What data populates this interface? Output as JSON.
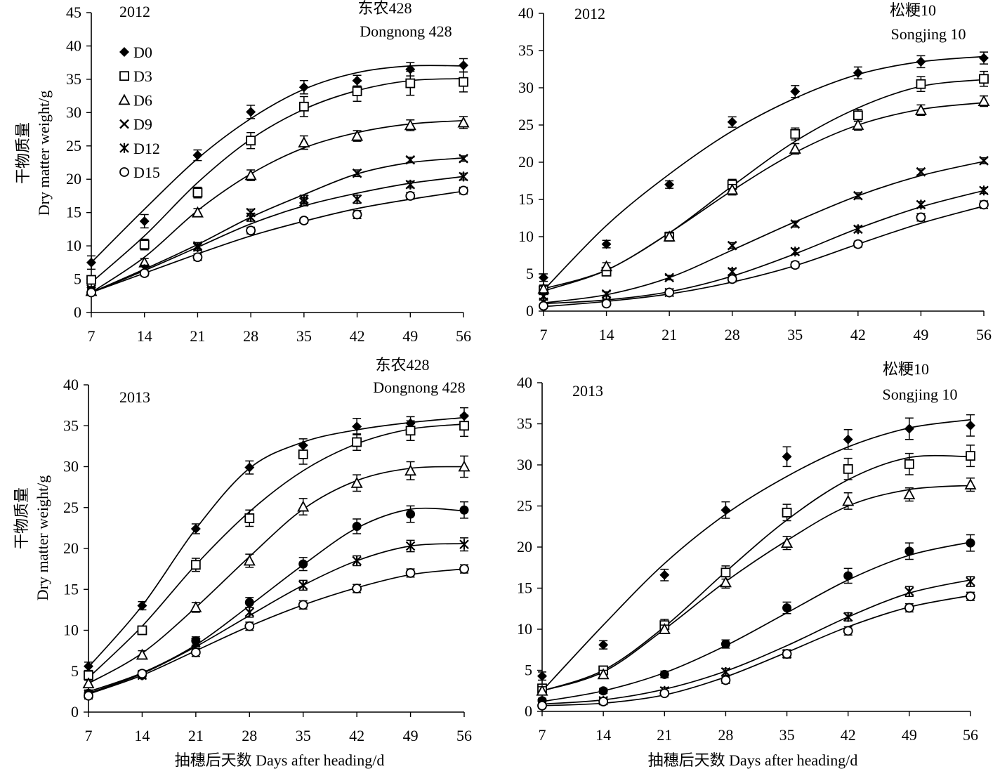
{
  "figure": {
    "ylabel_cn": "干物质量",
    "ylabel_en": "Dry matter weight/g",
    "xlabel": "抽穗后天数 Days after heading/d",
    "legend": [
      "D0",
      "D3",
      "D6",
      "D9",
      "D12",
      "D15"
    ],
    "colors": {
      "ink": "#000000",
      "background": "#ffffff"
    }
  },
  "chart_data": [
    {
      "type": "line",
      "year": "2012",
      "variety_cn": "东农428",
      "variety_en": "Dongnong 428",
      "x": [
        7,
        14,
        21,
        28,
        35,
        42,
        49,
        56
      ],
      "ylim": [
        0,
        45
      ],
      "yticks": [
        0,
        5,
        10,
        15,
        20,
        25,
        30,
        35,
        40,
        45
      ],
      "legend_position": "top-left",
      "series": [
        {
          "name": "D0",
          "marker": "diamond",
          "values": [
            7.5,
            13.7,
            23.6,
            30.1,
            33.8,
            34.8,
            36.5,
            37.1
          ],
          "err": [
            1.0,
            1.0,
            0.8,
            1.0,
            1.0,
            0.8,
            1.0,
            1.0
          ]
        },
        {
          "name": "D3",
          "marker": "square",
          "values": [
            4.9,
            10.2,
            18.0,
            25.8,
            30.9,
            33.2,
            34.4,
            34.6
          ],
          "err": [
            0.6,
            0.8,
            0.8,
            1.2,
            1.5,
            1.5,
            1.8,
            1.5
          ]
        },
        {
          "name": "D6",
          "marker": "triangle",
          "values": [
            3.2,
            7.5,
            15.0,
            20.6,
            25.5,
            26.5,
            28.1,
            28.5
          ],
          "err": [
            0.5,
            0.6,
            0.6,
            0.8,
            1.0,
            0.8,
            0.8,
            0.9
          ]
        },
        {
          "name": "D9",
          "marker": "x",
          "values": [
            3.5,
            6.6,
            10.0,
            15.0,
            16.6,
            20.9,
            22.9,
            23.1
          ],
          "err": [
            0.4,
            0.5,
            0.5,
            0.5,
            0.6,
            0.5,
            0.4,
            0.4
          ]
        },
        {
          "name": "D12",
          "marker": "asterisk",
          "values": [
            3.2,
            6.5,
            9.8,
            14.3,
            17.0,
            17.0,
            19.2,
            20.4
          ],
          "err": [
            0.4,
            0.5,
            0.5,
            0.6,
            0.6,
            0.6,
            0.5,
            0.5
          ]
        },
        {
          "name": "D15",
          "marker": "circle",
          "values": [
            3.0,
            5.9,
            8.3,
            12.3,
            13.8,
            14.7,
            17.5,
            18.3
          ],
          "err": [
            0.4,
            0.4,
            0.5,
            0.5,
            0.4,
            0.6,
            0.5,
            0.5
          ]
        }
      ],
      "fits": [
        [
          7.5,
          15.5,
          23.1,
          29.1,
          33.5,
          36.0,
          37.0,
          37.0
        ],
        [
          4.5,
          11.5,
          19.5,
          26.0,
          30.5,
          33.3,
          34.8,
          35.1
        ],
        [
          3.0,
          8.3,
          15.3,
          20.8,
          24.7,
          27.0,
          28.3,
          28.8
        ],
        [
          3.0,
          6.5,
          10.2,
          14.3,
          17.7,
          20.8,
          22.5,
          23.2
        ],
        [
          3.0,
          6.3,
          9.8,
          13.3,
          16.0,
          17.9,
          19.4,
          20.4
        ],
        [
          3.0,
          5.9,
          8.8,
          11.5,
          13.7,
          15.6,
          17.0,
          18.2
        ]
      ]
    },
    {
      "type": "line",
      "year": "2012",
      "variety_cn": "松粳10",
      "variety_en": "Songjing 10",
      "x": [
        7,
        14,
        21,
        28,
        35,
        42,
        49,
        56
      ],
      "ylim": [
        0,
        40
      ],
      "yticks": [
        0,
        5,
        10,
        15,
        20,
        25,
        30,
        35,
        40
      ],
      "series": [
        {
          "name": "D0",
          "marker": "diamond",
          "values": [
            4.5,
            9.0,
            17.0,
            25.4,
            29.5,
            32.0,
            33.5,
            34.0
          ],
          "err": [
            0.5,
            0.5,
            0.5,
            0.7,
            0.8,
            0.8,
            0.8,
            0.8
          ]
        },
        {
          "name": "D3",
          "marker": "square",
          "values": [
            2.8,
            5.3,
            10.0,
            17.0,
            23.8,
            26.3,
            30.5,
            31.2
          ],
          "err": [
            0.5,
            0.5,
            0.6,
            0.7,
            0.8,
            0.8,
            1.0,
            1.0
          ]
        },
        {
          "name": "D6",
          "marker": "triangle",
          "values": [
            3.0,
            6.0,
            10.0,
            16.3,
            21.8,
            25.0,
            27.0,
            28.2
          ],
          "err": [
            0.5,
            0.5,
            0.5,
            0.7,
            0.7,
            0.7,
            0.7,
            0.7
          ]
        },
        {
          "name": "D9",
          "marker": "x",
          "values": [
            2.0,
            2.3,
            4.5,
            8.8,
            11.7,
            15.5,
            18.7,
            20.2
          ],
          "err": [
            0.3,
            0.3,
            0.3,
            0.4,
            0.4,
            0.4,
            0.4,
            0.4
          ]
        },
        {
          "name": "D12",
          "marker": "asterisk",
          "values": [
            1.2,
            1.3,
            2.5,
            5.3,
            8.0,
            11.0,
            14.3,
            16.2
          ],
          "err": [
            0.3,
            0.3,
            0.3,
            0.4,
            0.4,
            0.4,
            0.4,
            0.4
          ]
        },
        {
          "name": "D15",
          "marker": "circle",
          "values": [
            0.7,
            1.0,
            2.5,
            4.3,
            6.2,
            9.0,
            12.6,
            14.3
          ],
          "err": [
            0.3,
            0.3,
            0.3,
            0.4,
            0.4,
            0.4,
            0.5,
            0.5
          ]
        }
      ],
      "fits": [
        [
          2.8,
          11.5,
          18.4,
          24.2,
          28.6,
          31.8,
          33.5,
          34.2
        ],
        [
          2.7,
          5.5,
          10.5,
          16.8,
          22.8,
          27.3,
          30.2,
          31.1
        ],
        [
          3.0,
          5.5,
          10.5,
          16.2,
          21.3,
          25.0,
          27.1,
          28.0
        ],
        [
          1.1,
          2.2,
          4.5,
          8.2,
          12.0,
          15.5,
          18.2,
          20.1
        ],
        [
          1.0,
          1.5,
          2.6,
          4.7,
          7.7,
          11.1,
          14.0,
          16.2
        ],
        [
          0.6,
          1.3,
          2.3,
          3.9,
          6.1,
          9.0,
          11.8,
          14.1
        ]
      ]
    },
    {
      "type": "line",
      "year": "2013",
      "variety_cn": "东农428",
      "variety_en": "Dongnong 428",
      "x": [
        7,
        14,
        21,
        28,
        35,
        42,
        49,
        56
      ],
      "ylim": [
        0,
        40
      ],
      "yticks": [
        0,
        5,
        10,
        15,
        20,
        25,
        30,
        35,
        40
      ],
      "series": [
        {
          "name": "D0",
          "marker": "diamond",
          "values": [
            5.6,
            13.0,
            22.4,
            29.9,
            32.6,
            34.9,
            35.3,
            36.2
          ],
          "err": [
            0.5,
            0.5,
            0.6,
            0.8,
            0.8,
            1.0,
            0.8,
            1.0
          ]
        },
        {
          "name": "D3",
          "marker": "square",
          "values": [
            4.5,
            10.0,
            18.0,
            23.7,
            31.5,
            33.0,
            34.4,
            35.0
          ],
          "err": [
            0.5,
            0.5,
            0.8,
            1.0,
            1.2,
            1.0,
            1.2,
            1.3
          ]
        },
        {
          "name": "D6",
          "marker": "triangle",
          "values": [
            3.5,
            7.0,
            12.8,
            18.5,
            25.1,
            28.0,
            29.5,
            30.0
          ],
          "err": [
            0.4,
            0.5,
            0.6,
            0.8,
            1.0,
            1.0,
            1.1,
            1.3
          ]
        },
        {
          "name": "D9",
          "marker": "circle-filled",
          "values": [
            2.3,
            4.5,
            8.7,
            13.4,
            18.1,
            22.7,
            24.2,
            24.7
          ],
          "err": [
            0.4,
            0.4,
            0.5,
            0.6,
            0.8,
            0.9,
            1.0,
            1.0
          ]
        },
        {
          "name": "D12",
          "marker": "asterisk",
          "values": [
            2.2,
            4.5,
            8.5,
            12.2,
            15.5,
            18.5,
            20.3,
            20.5
          ],
          "err": [
            0.4,
            0.4,
            0.5,
            0.6,
            0.6,
            0.6,
            0.7,
            0.8
          ]
        },
        {
          "name": "D15",
          "marker": "circle",
          "values": [
            2.0,
            4.7,
            7.3,
            10.5,
            13.1,
            15.1,
            17.0,
            17.5
          ],
          "err": [
            0.4,
            0.4,
            0.5,
            0.5,
            0.5,
            0.5,
            0.5,
            0.5
          ]
        }
      ],
      "fits": [
        [
          5.5,
          13.0,
          22.4,
          29.8,
          33.0,
          34.5,
          35.4,
          36.0
        ],
        [
          4.2,
          10.5,
          18.0,
          24.5,
          29.5,
          32.8,
          34.6,
          35.2
        ],
        [
          3.5,
          7.2,
          12.8,
          19.0,
          24.8,
          28.3,
          29.8,
          30.0
        ],
        [
          2.5,
          4.8,
          8.2,
          13.0,
          18.0,
          22.5,
          24.8,
          24.6
        ],
        [
          2.3,
          4.7,
          8.0,
          11.8,
          15.5,
          18.5,
          20.3,
          20.6
        ],
        [
          2.2,
          4.5,
          7.5,
          10.5,
          13.1,
          15.2,
          16.8,
          17.5
        ]
      ]
    },
    {
      "type": "line",
      "year": "2013",
      "variety_cn": "松粳10",
      "variety_en": "Songjing 10",
      "x": [
        7,
        14,
        21,
        28,
        35,
        42,
        49,
        56
      ],
      "ylim": [
        0,
        40
      ],
      "yticks": [
        0,
        5,
        10,
        15,
        20,
        25,
        30,
        35,
        40
      ],
      "series": [
        {
          "name": "D0",
          "marker": "diamond",
          "values": [
            4.3,
            8.1,
            16.6,
            24.5,
            31.0,
            33.1,
            34.4,
            34.8
          ],
          "err": [
            0.5,
            0.5,
            0.7,
            1.0,
            1.2,
            1.2,
            1.3,
            1.3
          ]
        },
        {
          "name": "D3",
          "marker": "square",
          "values": [
            2.8,
            5.0,
            10.5,
            16.9,
            24.2,
            29.5,
            30.1,
            31.1
          ],
          "err": [
            0.5,
            0.5,
            0.7,
            0.8,
            1.0,
            1.3,
            1.3,
            1.3
          ]
        },
        {
          "name": "D6",
          "marker": "triangle",
          "values": [
            2.5,
            4.5,
            10.0,
            15.7,
            20.5,
            25.6,
            26.4,
            27.6
          ],
          "err": [
            0.5,
            0.5,
            0.5,
            0.7,
            0.8,
            1.0,
            0.8,
            0.8
          ]
        },
        {
          "name": "D9",
          "marker": "circle-filled",
          "values": [
            1.3,
            2.5,
            4.5,
            8.2,
            12.6,
            16.5,
            19.5,
            20.5
          ],
          "err": [
            0.3,
            0.3,
            0.4,
            0.5,
            0.7,
            0.9,
            1.0,
            1.0
          ]
        },
        {
          "name": "D12",
          "marker": "asterisk",
          "values": [
            1.0,
            1.3,
            2.5,
            4.8,
            7.0,
            11.5,
            14.6,
            15.8
          ],
          "err": [
            0.3,
            0.3,
            0.4,
            0.4,
            0.5,
            0.5,
            0.6,
            0.6
          ]
        },
        {
          "name": "D15",
          "marker": "circle",
          "values": [
            0.7,
            1.2,
            2.2,
            3.8,
            7.0,
            9.8,
            12.6,
            14.0
          ],
          "err": [
            0.3,
            0.3,
            0.3,
            0.4,
            0.4,
            0.5,
            0.5,
            0.5
          ]
        }
      ],
      "fits": [
        [
          2.5,
          10.5,
          18.0,
          24.0,
          28.6,
          32.2,
          34.5,
          35.5
        ],
        [
          2.5,
          5.0,
          10.3,
          17.0,
          23.3,
          28.2,
          30.9,
          31.0
        ],
        [
          2.5,
          4.8,
          10.0,
          15.8,
          20.8,
          25.0,
          27.0,
          27.5
        ],
        [
          1.2,
          2.5,
          4.7,
          8.0,
          12.0,
          16.0,
          19.0,
          20.6
        ],
        [
          0.9,
          1.4,
          2.7,
          4.9,
          8.0,
          11.5,
          14.4,
          16.0
        ],
        [
          0.7,
          1.0,
          2.0,
          4.2,
          7.2,
          10.3,
          12.7,
          14.1
        ]
      ]
    }
  ]
}
